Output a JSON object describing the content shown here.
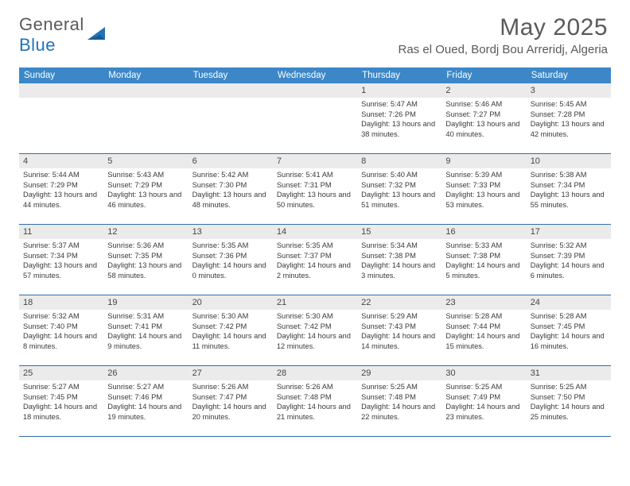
{
  "logo": {
    "general": "General",
    "blue": "Blue"
  },
  "title": "May 2025",
  "location": "Ras el Oued, Bordj Bou Arreridj, Algeria",
  "weekdays": [
    "Sunday",
    "Monday",
    "Tuesday",
    "Wednesday",
    "Thursday",
    "Friday",
    "Saturday"
  ],
  "colors": {
    "header_bar": "#3b87c8",
    "daynum_bg": "#ebebeb",
    "divider": "#2f6ea8",
    "text_gray": "#5a5a5a",
    "logo_blue": "#2173b8"
  },
  "weeks": [
    [
      null,
      null,
      null,
      null,
      {
        "n": "1",
        "sr": "5:47 AM",
        "ss": "7:26 PM",
        "dl": "13 hours and 38 minutes."
      },
      {
        "n": "2",
        "sr": "5:46 AM",
        "ss": "7:27 PM",
        "dl": "13 hours and 40 minutes."
      },
      {
        "n": "3",
        "sr": "5:45 AM",
        "ss": "7:28 PM",
        "dl": "13 hours and 42 minutes."
      }
    ],
    [
      {
        "n": "4",
        "sr": "5:44 AM",
        "ss": "7:29 PM",
        "dl": "13 hours and 44 minutes."
      },
      {
        "n": "5",
        "sr": "5:43 AM",
        "ss": "7:29 PM",
        "dl": "13 hours and 46 minutes."
      },
      {
        "n": "6",
        "sr": "5:42 AM",
        "ss": "7:30 PM",
        "dl": "13 hours and 48 minutes."
      },
      {
        "n": "7",
        "sr": "5:41 AM",
        "ss": "7:31 PM",
        "dl": "13 hours and 50 minutes."
      },
      {
        "n": "8",
        "sr": "5:40 AM",
        "ss": "7:32 PM",
        "dl": "13 hours and 51 minutes."
      },
      {
        "n": "9",
        "sr": "5:39 AM",
        "ss": "7:33 PM",
        "dl": "13 hours and 53 minutes."
      },
      {
        "n": "10",
        "sr": "5:38 AM",
        "ss": "7:34 PM",
        "dl": "13 hours and 55 minutes."
      }
    ],
    [
      {
        "n": "11",
        "sr": "5:37 AM",
        "ss": "7:34 PM",
        "dl": "13 hours and 57 minutes."
      },
      {
        "n": "12",
        "sr": "5:36 AM",
        "ss": "7:35 PM",
        "dl": "13 hours and 58 minutes."
      },
      {
        "n": "13",
        "sr": "5:35 AM",
        "ss": "7:36 PM",
        "dl": "14 hours and 0 minutes."
      },
      {
        "n": "14",
        "sr": "5:35 AM",
        "ss": "7:37 PM",
        "dl": "14 hours and 2 minutes."
      },
      {
        "n": "15",
        "sr": "5:34 AM",
        "ss": "7:38 PM",
        "dl": "14 hours and 3 minutes."
      },
      {
        "n": "16",
        "sr": "5:33 AM",
        "ss": "7:38 PM",
        "dl": "14 hours and 5 minutes."
      },
      {
        "n": "17",
        "sr": "5:32 AM",
        "ss": "7:39 PM",
        "dl": "14 hours and 6 minutes."
      }
    ],
    [
      {
        "n": "18",
        "sr": "5:32 AM",
        "ss": "7:40 PM",
        "dl": "14 hours and 8 minutes."
      },
      {
        "n": "19",
        "sr": "5:31 AM",
        "ss": "7:41 PM",
        "dl": "14 hours and 9 minutes."
      },
      {
        "n": "20",
        "sr": "5:30 AM",
        "ss": "7:42 PM",
        "dl": "14 hours and 11 minutes."
      },
      {
        "n": "21",
        "sr": "5:30 AM",
        "ss": "7:42 PM",
        "dl": "14 hours and 12 minutes."
      },
      {
        "n": "22",
        "sr": "5:29 AM",
        "ss": "7:43 PM",
        "dl": "14 hours and 14 minutes."
      },
      {
        "n": "23",
        "sr": "5:28 AM",
        "ss": "7:44 PM",
        "dl": "14 hours and 15 minutes."
      },
      {
        "n": "24",
        "sr": "5:28 AM",
        "ss": "7:45 PM",
        "dl": "14 hours and 16 minutes."
      }
    ],
    [
      {
        "n": "25",
        "sr": "5:27 AM",
        "ss": "7:45 PM",
        "dl": "14 hours and 18 minutes."
      },
      {
        "n": "26",
        "sr": "5:27 AM",
        "ss": "7:46 PM",
        "dl": "14 hours and 19 minutes."
      },
      {
        "n": "27",
        "sr": "5:26 AM",
        "ss": "7:47 PM",
        "dl": "14 hours and 20 minutes."
      },
      {
        "n": "28",
        "sr": "5:26 AM",
        "ss": "7:48 PM",
        "dl": "14 hours and 21 minutes."
      },
      {
        "n": "29",
        "sr": "5:25 AM",
        "ss": "7:48 PM",
        "dl": "14 hours and 22 minutes."
      },
      {
        "n": "30",
        "sr": "5:25 AM",
        "ss": "7:49 PM",
        "dl": "14 hours and 23 minutes."
      },
      {
        "n": "31",
        "sr": "5:25 AM",
        "ss": "7:50 PM",
        "dl": "14 hours and 25 minutes."
      }
    ]
  ],
  "labels": {
    "sunrise": "Sunrise: ",
    "sunset": "Sunset: ",
    "daylight": "Daylight: "
  }
}
